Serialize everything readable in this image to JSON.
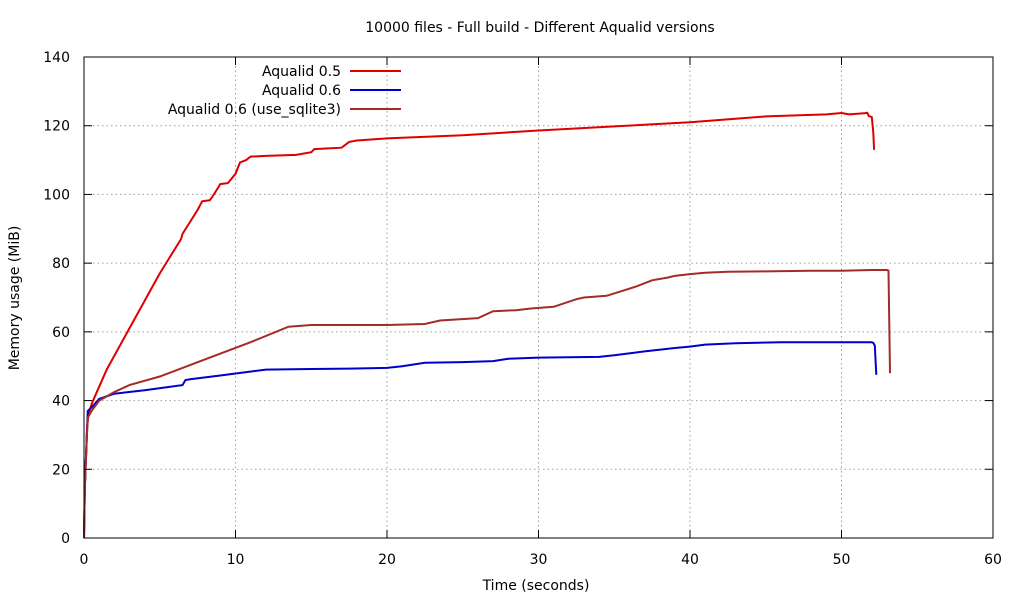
{
  "chart_data": {
    "type": "line",
    "title": "10000 files - Full build - Different Aqualid versions",
    "xlabel": "Time (seconds)",
    "ylabel": "Memory usage (MiB)",
    "xlim": [
      0,
      60
    ],
    "ylim": [
      0,
      140
    ],
    "xticks": [
      0,
      10,
      20,
      30,
      40,
      50,
      60
    ],
    "yticks": [
      0,
      20,
      40,
      60,
      80,
      100,
      120,
      140
    ],
    "grid": true,
    "legend_position": "top-left",
    "series": [
      {
        "name": "Aqualid 0.5",
        "color": "#dd0000",
        "x": [
          0,
          0.05,
          0.1,
          0.15,
          0.2,
          0.3,
          0.5,
          0.8,
          1.5,
          3,
          5,
          6.4,
          6.5,
          7.0,
          7.5,
          7.8,
          8.3,
          8.5,
          9.0,
          9.5,
          10.0,
          10.3,
          10.7,
          11.0,
          12.0,
          14.0,
          15.0,
          15.2,
          17.0,
          17.5,
          18.0,
          20.0,
          25.0,
          30.0,
          35.0,
          40.0,
          45.0,
          49.0,
          50.0,
          50.5,
          51.5,
          51.7,
          51.8,
          52.0,
          52.1,
          52.15
        ],
        "y": [
          0,
          14.5,
          20,
          25,
          32,
          36,
          39,
          42,
          49,
          61,
          77,
          87,
          88.5,
          92,
          95.5,
          98,
          98.3,
          99.5,
          103,
          103.3,
          106,
          109.3,
          110,
          111,
          111.2,
          111.5,
          112.3,
          113.2,
          113.6,
          115.3,
          115.7,
          116.3,
          117.2,
          118.6,
          119.8,
          121.0,
          122.7,
          123.3,
          123.7,
          123.3,
          123.6,
          123.8,
          122.8,
          122.5,
          118,
          113
        ]
      },
      {
        "name": "Aqualid 0.6",
        "color": "#0000cc",
        "x": [
          0,
          0.05,
          0.1,
          0.15,
          0.25,
          0.5,
          1.0,
          2.0,
          4.0,
          6.5,
          6.7,
          7.0,
          9.0,
          12.0,
          15.0,
          17.5,
          20.0,
          21.0,
          22.5,
          25.0,
          27.0,
          28.0,
          30.0,
          34.0,
          35.0,
          37.0,
          39.0,
          40.0,
          41.0,
          43.0,
          46.0,
          50.0,
          52.0,
          52.1,
          52.2,
          52.3
        ],
        "y": [
          0,
          14,
          20,
          26,
          37,
          38,
          40.5,
          42,
          43,
          44.5,
          46,
          46.2,
          47.3,
          49,
          49.2,
          49.3,
          49.5,
          50,
          51,
          51.2,
          51.5,
          52.2,
          52.5,
          52.7,
          53.2,
          54.3,
          55.3,
          55.7,
          56.3,
          56.7,
          57,
          57,
          57,
          56.8,
          56,
          47.5
        ]
      },
      {
        "name": "Aqualid 0.6 (use_sqlite3)",
        "color": "#a52a2a",
        "x": [
          0,
          0.05,
          0.1,
          0.15,
          0.25,
          0.5,
          1.0,
          2.0,
          3.0,
          5.0,
          8.0,
          11.0,
          13.5,
          15.0,
          18.0,
          20.0,
          22.5,
          23.5,
          26.0,
          27.0,
          28.5,
          29.5,
          31.0,
          32.5,
          33.0,
          34.5,
          36.5,
          37.5,
          38.5,
          39.0,
          40.0,
          41.0,
          42.5,
          45.0,
          48.0,
          50.0,
          52.0,
          53.0,
          53.1,
          53.2
        ],
        "y": [
          0,
          14,
          20,
          26,
          35,
          37,
          40,
          42.5,
          44.5,
          47,
          52,
          57,
          61.5,
          62,
          62,
          62,
          62.3,
          63.3,
          64,
          66,
          66.3,
          66.8,
          67.3,
          69.5,
          70,
          70.5,
          73.3,
          75,
          75.8,
          76.3,
          76.8,
          77.2,
          77.5,
          77.6,
          77.8,
          77.8,
          78,
          78,
          77.8,
          48
        ]
      }
    ]
  }
}
